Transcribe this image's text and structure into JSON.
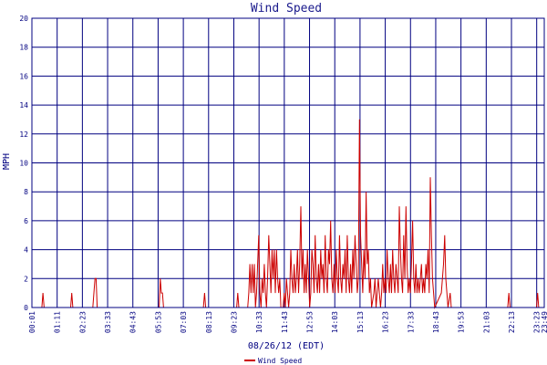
{
  "chart_data": {
    "type": "line",
    "title": "Wind Speed",
    "xlabel": "08/26/12 (EDT)",
    "ylabel": "MPH",
    "ylim": [
      0,
      20
    ],
    "y_ticks": [
      0,
      2,
      4,
      6,
      8,
      10,
      12,
      14,
      16,
      18,
      20
    ],
    "x_ticks": [
      "00:01",
      "01:11",
      "02:23",
      "03:33",
      "04:43",
      "05:53",
      "07:03",
      "08:13",
      "09:23",
      "10:33",
      "11:43",
      "12:53",
      "14:03",
      "15:13",
      "16:23",
      "17:33",
      "18:43",
      "19:53",
      "21:03",
      "22:13",
      "23:23",
      "23:49"
    ],
    "grid": true,
    "legend_position": "bottom",
    "series": [
      {
        "name": "Wind Speed",
        "color": "#cc0000",
        "points": [
          [
            0,
            0
          ],
          [
            9,
            0
          ],
          [
            10,
            1
          ],
          [
            11,
            0
          ],
          [
            35,
            0
          ],
          [
            36,
            1
          ],
          [
            37,
            0
          ],
          [
            55,
            0
          ],
          [
            56,
            1
          ],
          [
            57,
            2
          ],
          [
            58,
            2
          ],
          [
            59,
            0
          ],
          [
            115,
            0
          ],
          [
            116,
            2
          ],
          [
            117,
            1
          ],
          [
            118,
            1
          ],
          [
            119,
            0
          ],
          [
            155,
            0
          ],
          [
            156,
            1
          ],
          [
            157,
            0
          ],
          [
            185,
            0
          ],
          [
            186,
            1
          ],
          [
            187,
            0
          ],
          [
            195,
            0
          ],
          [
            196,
            1
          ],
          [
            197,
            3
          ],
          [
            198,
            1
          ],
          [
            199,
            3
          ],
          [
            200,
            1
          ],
          [
            201,
            3
          ],
          [
            202,
            0
          ],
          [
            203,
            1
          ],
          [
            204,
            3
          ],
          [
            205,
            5
          ],
          [
            206,
            1
          ],
          [
            207,
            0
          ],
          [
            208,
            2
          ],
          [
            209,
            1
          ],
          [
            210,
            3
          ],
          [
            211,
            1
          ],
          [
            212,
            0
          ],
          [
            213,
            2
          ],
          [
            214,
            5
          ],
          [
            215,
            3
          ],
          [
            216,
            1
          ],
          [
            217,
            4
          ],
          [
            218,
            2
          ],
          [
            219,
            4
          ],
          [
            220,
            1
          ],
          [
            221,
            4
          ],
          [
            222,
            2
          ],
          [
            223,
            1
          ],
          [
            224,
            2
          ],
          [
            225,
            0
          ],
          [
            227,
            0
          ],
          [
            228,
            1
          ],
          [
            229,
            0
          ],
          [
            230,
            2
          ],
          [
            231,
            1
          ],
          [
            232,
            0
          ],
          [
            233,
            1
          ],
          [
            234,
            4
          ],
          [
            235,
            2
          ],
          [
            236,
            1
          ],
          [
            237,
            3
          ],
          [
            238,
            1
          ],
          [
            239,
            2
          ],
          [
            240,
            4
          ],
          [
            241,
            1
          ],
          [
            242,
            3
          ],
          [
            243,
            7
          ],
          [
            244,
            2
          ],
          [
            245,
            4
          ],
          [
            246,
            1
          ],
          [
            247,
            3
          ],
          [
            248,
            1
          ],
          [
            249,
            4
          ],
          [
            250,
            2
          ],
          [
            251,
            0
          ],
          [
            252,
            1
          ],
          [
            253,
            4
          ],
          [
            254,
            3
          ],
          [
            255,
            1
          ],
          [
            256,
            5
          ],
          [
            257,
            2
          ],
          [
            258,
            1
          ],
          [
            259,
            3
          ],
          [
            260,
            1
          ],
          [
            261,
            4
          ],
          [
            262,
            2
          ],
          [
            263,
            3
          ],
          [
            264,
            1
          ],
          [
            265,
            5
          ],
          [
            266,
            2
          ],
          [
            267,
            1
          ],
          [
            268,
            4
          ],
          [
            269,
            3
          ],
          [
            270,
            6
          ],
          [
            271,
            2
          ],
          [
            272,
            1
          ],
          [
            273,
            3
          ],
          [
            274,
            1
          ],
          [
            275,
            4
          ],
          [
            276,
            2
          ],
          [
            277,
            1
          ],
          [
            278,
            5
          ],
          [
            279,
            2
          ],
          [
            280,
            1
          ],
          [
            281,
            3
          ],
          [
            282,
            2
          ],
          [
            283,
            4
          ],
          [
            284,
            1
          ],
          [
            285,
            5
          ],
          [
            286,
            2
          ],
          [
            287,
            1
          ],
          [
            288,
            3
          ],
          [
            289,
            1
          ],
          [
            290,
            4
          ],
          [
            291,
            2
          ],
          [
            292,
            5
          ],
          [
            293,
            3
          ],
          [
            294,
            1
          ],
          [
            295,
            2
          ],
          [
            296,
            13
          ],
          [
            297,
            5
          ],
          [
            298,
            3
          ],
          [
            299,
            1
          ],
          [
            300,
            4
          ],
          [
            301,
            2
          ],
          [
            302,
            8
          ],
          [
            303,
            3
          ],
          [
            304,
            4
          ],
          [
            305,
            1
          ],
          [
            306,
            2
          ],
          [
            307,
            0
          ],
          [
            309,
            1
          ],
          [
            310,
            2
          ],
          [
            311,
            0
          ],
          [
            312,
            1
          ],
          [
            313,
            2
          ],
          [
            314,
            1
          ],
          [
            315,
            0
          ],
          [
            316,
            1
          ],
          [
            317,
            3
          ],
          [
            318,
            1
          ],
          [
            319,
            2
          ],
          [
            320,
            1
          ],
          [
            321,
            4
          ],
          [
            322,
            2
          ],
          [
            323,
            1
          ],
          [
            324,
            3
          ],
          [
            325,
            1
          ],
          [
            326,
            4
          ],
          [
            327,
            2
          ],
          [
            328,
            1
          ],
          [
            329,
            3
          ],
          [
            330,
            2
          ],
          [
            331,
            1
          ],
          [
            332,
            7
          ],
          [
            333,
            4
          ],
          [
            334,
            2
          ],
          [
            335,
            1
          ],
          [
            336,
            5
          ],
          [
            337,
            2
          ],
          [
            338,
            7
          ],
          [
            339,
            3
          ],
          [
            340,
            1
          ],
          [
            341,
            2
          ],
          [
            342,
            1
          ],
          [
            343,
            3
          ],
          [
            344,
            6
          ],
          [
            345,
            2
          ],
          [
            346,
            1
          ],
          [
            347,
            3
          ],
          [
            348,
            1
          ],
          [
            349,
            2
          ],
          [
            350,
            1
          ],
          [
            351,
            2
          ],
          [
            352,
            3
          ],
          [
            353,
            1
          ],
          [
            354,
            2
          ],
          [
            355,
            1
          ],
          [
            356,
            3
          ],
          [
            357,
            2
          ],
          [
            358,
            4
          ],
          [
            359,
            1
          ],
          [
            360,
            9
          ],
          [
            361,
            5
          ],
          [
            362,
            2
          ],
          [
            363,
            1
          ],
          [
            364,
            0
          ],
          [
            370,
            1
          ],
          [
            371,
            2
          ],
          [
            372,
            3
          ],
          [
            373,
            5
          ],
          [
            374,
            2
          ],
          [
            375,
            1
          ],
          [
            376,
            0
          ],
          [
            378,
            1
          ],
          [
            379,
            0
          ],
          [
            430,
            0
          ],
          [
            431,
            1
          ],
          [
            432,
            0
          ],
          [
            456,
            0
          ],
          [
            457,
            1
          ],
          [
            458,
            0
          ],
          [
            463,
            0
          ]
        ]
      }
    ]
  },
  "legend": {
    "label": "Wind Speed",
    "color": "#cc0000"
  }
}
